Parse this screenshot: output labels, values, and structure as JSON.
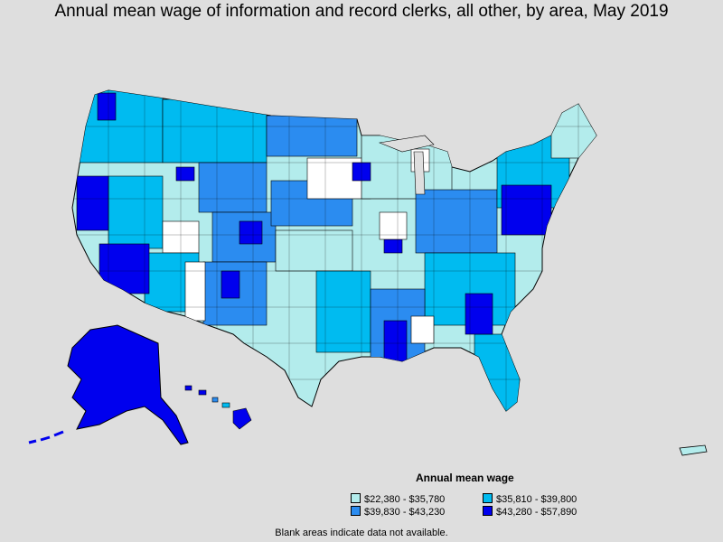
{
  "title": "Annual mean wage of information and record clerks, all other, by area, May 2019",
  "legend": {
    "title": "Annual mean wage",
    "items": [
      {
        "label": "$22,380 - $35,780",
        "color": "#b3ecec"
      },
      {
        "label": "$35,810 - $39,800",
        "color": "#00bbf0"
      },
      {
        "label": "$39,830 - $43,230",
        "color": "#2b8cf0"
      },
      {
        "label": "$43,280 - $57,890",
        "color": "#0000ee"
      }
    ]
  },
  "note": "Blank areas indicate data not available.",
  "colors": {
    "background": "#dedede",
    "no_data": "#ffffff",
    "border": "#000000"
  }
}
